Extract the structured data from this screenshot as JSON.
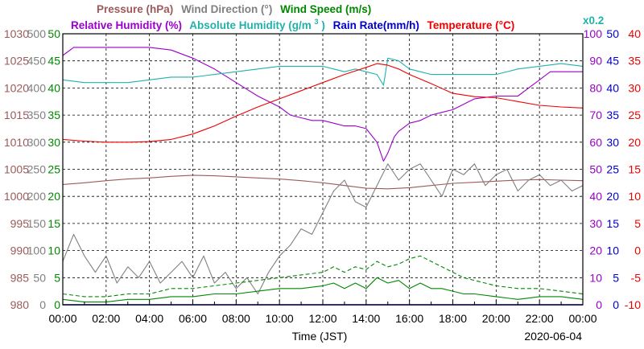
{
  "chart_data": {
    "type": "line",
    "date": "2020-06-04",
    "xlabel": "Time (JST)",
    "x_ticks": [
      "00:00",
      "02:00",
      "04:00",
      "06:00",
      "08:00",
      "10:00",
      "12:00",
      "14:00",
      "16:00",
      "18:00",
      "20:00",
      "22:00",
      "00:00"
    ],
    "x_range_hours": [
      0,
      24
    ],
    "grid": true,
    "legend_row1": [
      {
        "name": "Pressure (hPa)",
        "color": "#9c5a5a"
      },
      {
        "name": "Wind Direction (°)",
        "color": "#808080"
      },
      {
        "name": "Wind Speed (m/s)",
        "color": "#008800"
      }
    ],
    "legend_row2": [
      {
        "name": "Relative Humidity (%)",
        "color": "#9900cc"
      },
      {
        "name": "Absolute Humidity (g/m",
        "sup": "3",
        "tail": ")",
        "color": "#20b2aa"
      },
      {
        "name": "Rain Rate(mm/h)",
        "color": "#0000cc"
      },
      {
        "name": "Temperature (°C)",
        "color": "#ee0000"
      }
    ],
    "scale_note": {
      "text": "x0.2",
      "color": "#20b2aa"
    },
    "axes": {
      "pressure": {
        "ticks": [
          "980",
          "985",
          "990",
          "995",
          "1000",
          "1005",
          "1010",
          "1015",
          "1020",
          "1025",
          "1030"
        ],
        "range": [
          980,
          1030
        ],
        "color": "#9c5a5a",
        "side": "left"
      },
      "wind_dir": {
        "ticks": [
          "0",
          "50",
          "100",
          "150",
          "200",
          "250",
          "300",
          "350",
          "400",
          "450",
          "500"
        ],
        "range": [
          0,
          500
        ],
        "color": "#808080",
        "side": "left"
      },
      "wind_speed": {
        "ticks": [
          "0",
          "5",
          "10",
          "15",
          "20",
          "25",
          "30",
          "35",
          "40",
          "45",
          "50"
        ],
        "range": [
          0,
          50
        ],
        "color": "#008800",
        "side": "left"
      },
      "humidity": {
        "ticks": [
          "0",
          "10",
          "20",
          "30",
          "40",
          "50",
          "60",
          "70",
          "80",
          "90",
          "100"
        ],
        "range": [
          0,
          100
        ],
        "color": "#9900cc",
        "side": "right"
      },
      "rain": {
        "ticks": [
          "0",
          "5",
          "10",
          "15",
          "20",
          "25",
          "30",
          "35",
          "40",
          "45",
          "50"
        ],
        "range": [
          0,
          50
        ],
        "color": "#0000cc",
        "side": "right"
      },
      "temperature": {
        "ticks": [
          "-10",
          "-5",
          "0",
          "5",
          "10",
          "15",
          "20",
          "25",
          "30",
          "35",
          "40"
        ],
        "range": [
          -10,
          40
        ],
        "color": "#ee0000",
        "side": "right"
      }
    },
    "series": [
      {
        "name": "Pressure (hPa)",
        "axis": "pressure",
        "color": "#9c5a5a",
        "style": "solid",
        "x": [
          0,
          1,
          2,
          3,
          4,
          5,
          6,
          7,
          8,
          9,
          10,
          11,
          12,
          13,
          14,
          15,
          16,
          17,
          18,
          19,
          20,
          21,
          22,
          23,
          24
        ],
        "y": [
          1002.2,
          1002.5,
          1002.9,
          1003.2,
          1003.4,
          1003.7,
          1003.9,
          1003.8,
          1003.6,
          1003.4,
          1003.2,
          1002.9,
          1002.5,
          1002.0,
          1001.5,
          1001.4,
          1001.6,
          1002.0,
          1002.4,
          1002.6,
          1002.8,
          1003.0,
          1003.1,
          1003.0,
          1002.9
        ]
      },
      {
        "name": "Relative Humidity (%)",
        "axis": "humidity",
        "color": "#9900cc",
        "style": "solid",
        "x": [
          0,
          0.5,
          2,
          4,
          5,
          6,
          7,
          8,
          9,
          10,
          10.5,
          11,
          11.5,
          12,
          12.5,
          13,
          13.5,
          14,
          14.5,
          14.8,
          15,
          15.3,
          15.5,
          16,
          16.5,
          17,
          17.5,
          18,
          18.5,
          19,
          20,
          21,
          21.5,
          22,
          22.5,
          23,
          24
        ],
        "y": [
          92,
          95,
          95,
          95,
          94,
          91,
          87,
          82,
          77,
          73,
          70,
          69,
          68,
          68,
          67,
          66,
          66,
          65,
          60,
          53,
          56,
          62,
          64,
          67,
          68,
          70,
          71,
          72,
          74,
          76,
          77,
          77,
          80,
          83,
          86,
          86,
          86
        ]
      },
      {
        "name": "Absolute Humidity (g/m3)",
        "axis": "humidity",
        "color": "#20b2aa",
        "style": "solid",
        "x": [
          0,
          1,
          2,
          3,
          4,
          5,
          6,
          7,
          8,
          9,
          10,
          11,
          12,
          12.5,
          13,
          13.5,
          14,
          14.5,
          14.8,
          15,
          15.5,
          16,
          16.5,
          17,
          18,
          19,
          20,
          21,
          22,
          23,
          24
        ],
        "y": [
          83,
          82,
          82,
          82,
          83,
          84,
          84,
          85,
          86,
          87,
          88,
          88,
          88,
          87,
          86,
          87,
          86,
          85,
          81,
          91,
          90,
          87,
          86,
          85,
          85,
          85,
          85,
          87,
          88,
          89,
          88
        ]
      },
      {
        "name": "Temperature (°C)",
        "axis": "temperature",
        "color": "#ee0000",
        "style": "solid",
        "x": [
          0,
          1,
          2,
          3,
          4,
          5,
          6,
          7,
          8,
          9,
          10,
          11,
          12,
          13,
          14,
          14.5,
          15,
          15.5,
          16,
          17,
          18,
          19,
          20,
          21,
          22,
          23,
          24
        ],
        "y": [
          20.5,
          20.2,
          20.0,
          20.0,
          20.1,
          20.5,
          21.5,
          23.0,
          24.8,
          26.5,
          28.0,
          29.5,
          31.0,
          32.5,
          33.8,
          34.5,
          34.2,
          33.5,
          32.5,
          30.8,
          29.0,
          28.4,
          28.2,
          27.5,
          26.8,
          26.5,
          26.3
        ]
      },
      {
        "name": "Wind Direction (°)",
        "axis": "wind_dir",
        "color": "#808080",
        "style": "solid",
        "x": [
          0,
          0.5,
          1,
          1.5,
          2,
          2.5,
          3,
          3.5,
          4,
          4.5,
          5,
          5.5,
          6,
          6.5,
          7,
          7.5,
          8,
          8.5,
          9,
          9.5,
          10,
          10.5,
          11,
          11.5,
          12,
          12.5,
          13,
          13.5,
          14,
          14.5,
          15,
          15.5,
          16,
          16.5,
          17,
          17.5,
          18,
          18.5,
          19,
          19.5,
          20,
          20.5,
          21,
          21.5,
          22,
          22.5,
          23,
          23.5,
          24
        ],
        "y": [
          80,
          130,
          90,
          60,
          90,
          40,
          70,
          50,
          80,
          40,
          60,
          80,
          50,
          90,
          40,
          60,
          30,
          50,
          20,
          60,
          90,
          110,
          140,
          130,
          170,
          210,
          230,
          190,
          180,
          220,
          260,
          230,
          250,
          260,
          230,
          200,
          250,
          240,
          260,
          220,
          240,
          250,
          210,
          230,
          240,
          220,
          230,
          210,
          220
        ]
      },
      {
        "name": "Wind Speed (m/s)",
        "axis": "wind_speed",
        "color": "#008800",
        "style": "solid",
        "x": [
          0,
          1,
          2,
          3,
          4,
          5,
          6,
          7,
          8,
          9,
          10,
          11,
          12,
          12.5,
          13,
          13.5,
          14,
          14.5,
          15,
          15.5,
          16,
          16.5,
          17,
          17.5,
          18,
          18.5,
          19,
          20,
          21,
          22,
          23,
          24
        ],
        "y": [
          1,
          0.5,
          0.5,
          1,
          1,
          1.5,
          1.5,
          2,
          2,
          2.5,
          3,
          3,
          3.5,
          4,
          3,
          4,
          3,
          5,
          4,
          4.5,
          3,
          4,
          3,
          3,
          2.5,
          2,
          2,
          1.5,
          1,
          1.5,
          1.5,
          1
        ]
      },
      {
        "name": "Wind Speed gust (m/s)",
        "axis": "wind_speed",
        "color": "#008800",
        "style": "dashed",
        "x": [
          0,
          1,
          2,
          3,
          4,
          5,
          6,
          7,
          8,
          9,
          10,
          11,
          12,
          12.5,
          13,
          13.5,
          14,
          14.5,
          15,
          15.5,
          16,
          16.5,
          17,
          17.5,
          18,
          18.5,
          19,
          20,
          21,
          22,
          23,
          24
        ],
        "y": [
          2,
          1.5,
          1.5,
          2,
          2,
          3,
          3,
          3.5,
          4,
          4.5,
          5,
          5.5,
          6,
          7,
          6,
          7,
          6.5,
          8,
          7,
          7.5,
          8.5,
          9,
          8,
          7,
          6,
          5,
          4.5,
          3.5,
          3,
          3,
          2.5,
          2
        ]
      },
      {
        "name": "Rain Rate(mm/h)",
        "axis": "rain",
        "color": "#0000cc",
        "style": "solid",
        "x": [
          0,
          24
        ],
        "y": [
          0,
          0
        ]
      }
    ]
  }
}
